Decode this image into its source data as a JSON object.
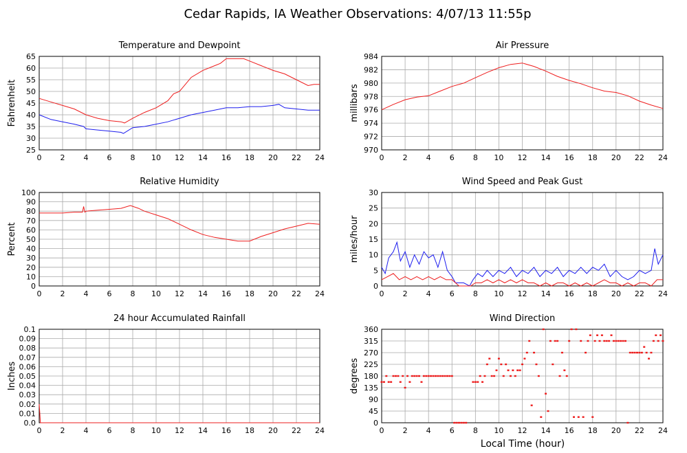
{
  "page": {
    "title": "Cedar Rapids, IA Weather Observations: 4/07/13 11:55p",
    "xlabel": "Local Time (hour)"
  },
  "colors": {
    "red": "#ee1c1c",
    "blue": "#1c1cee",
    "grid": "#a9a9a9"
  },
  "chart_data": [
    {
      "id": "temp",
      "type": "line",
      "title": "Temperature and Dewpoint",
      "ylabel": "Fahrenheit",
      "xlim": [
        0,
        24
      ],
      "ylim": [
        25,
        65
      ],
      "xticks": [
        0,
        2,
        4,
        6,
        8,
        10,
        12,
        14,
        16,
        18,
        20,
        22,
        24
      ],
      "yticks": [
        25,
        30,
        35,
        40,
        45,
        50,
        55,
        60,
        65
      ],
      "grid": true,
      "series": [
        {
          "color": "red",
          "x": [
            0,
            1,
            2,
            3,
            4,
            5,
            6,
            7,
            7.3,
            8,
            9,
            10,
            11,
            11.5,
            12,
            12.5,
            13,
            14,
            15,
            15.5,
            16,
            17,
            17.5,
            18,
            19,
            20,
            21,
            22,
            23,
            23.5,
            24
          ],
          "y": [
            47,
            45.5,
            44,
            42.5,
            40,
            38.5,
            37.5,
            37,
            36.5,
            38.5,
            41,
            43,
            46,
            49,
            50,
            53,
            56,
            59,
            61,
            62,
            64,
            64,
            64,
            63,
            61,
            59,
            57.5,
            55,
            52.5,
            53,
            53
          ]
        },
        {
          "color": "blue",
          "x": [
            0,
            1,
            2,
            3,
            3.8,
            4,
            5,
            6,
            7,
            7.2,
            8,
            9,
            10,
            11,
            12,
            13,
            14,
            15,
            16,
            17,
            18,
            19,
            20,
            20.5,
            21,
            22,
            23,
            24
          ],
          "y": [
            40,
            38,
            37,
            36,
            35,
            34,
            33.5,
            33,
            32.5,
            32,
            34.5,
            35,
            36,
            37,
            38.5,
            40,
            41,
            42,
            43,
            43,
            43.5,
            43.5,
            44,
            44.5,
            43,
            42.5,
            42,
            42
          ]
        }
      ]
    },
    {
      "id": "pressure",
      "type": "line",
      "title": "Air Pressure",
      "ylabel": "millibars",
      "xlim": [
        0,
        24
      ],
      "ylim": [
        970,
        984
      ],
      "xticks": [
        0,
        2,
        4,
        6,
        8,
        10,
        12,
        14,
        16,
        18,
        20,
        22,
        24
      ],
      "yticks": [
        970,
        972,
        974,
        976,
        978,
        980,
        982,
        984
      ],
      "grid": true,
      "series": [
        {
          "color": "red",
          "x": [
            0,
            1,
            2,
            3,
            4,
            5,
            6,
            7,
            8,
            9,
            10,
            11,
            12,
            13,
            14,
            15,
            16,
            17,
            18,
            19,
            20,
            21,
            22,
            23,
            24
          ],
          "y": [
            976,
            976.8,
            977.5,
            977.9,
            978.1,
            978.8,
            979.5,
            980,
            980.8,
            981.6,
            982.3,
            982.8,
            983,
            982.5,
            981.8,
            981,
            980.4,
            979.9,
            979.3,
            978.8,
            978.6,
            978.1,
            977.3,
            976.7,
            976.2
          ]
        }
      ]
    },
    {
      "id": "humidity",
      "type": "line",
      "title": "Relative Humidity",
      "ylabel": "Percent",
      "xlim": [
        0,
        24
      ],
      "ylim": [
        0,
        100
      ],
      "xticks": [
        0,
        2,
        4,
        6,
        8,
        10,
        12,
        14,
        16,
        18,
        20,
        22,
        24
      ],
      "yticks": [
        0,
        10,
        20,
        30,
        40,
        50,
        60,
        70,
        80,
        90,
        100
      ],
      "grid": true,
      "series": [
        {
          "color": "red",
          "x": [
            0,
            1,
            2,
            3,
            3.7,
            3.8,
            3.9,
            4,
            5,
            6,
            7,
            7.8,
            8.5,
            9,
            10,
            11,
            12,
            13,
            14,
            15,
            16,
            17,
            18,
            19,
            20,
            21,
            22,
            23,
            24
          ],
          "y": [
            78,
            78,
            78,
            79,
            79,
            85,
            79,
            80,
            81,
            82,
            83,
            86,
            83,
            80,
            76,
            72,
            66,
            60,
            55,
            52,
            50,
            48,
            48,
            53,
            57,
            61,
            64,
            67,
            66
          ]
        }
      ]
    },
    {
      "id": "wind",
      "type": "line",
      "title": "Wind Speed and Peak Gust",
      "ylabel": "miles/hour",
      "xlim": [
        0,
        24
      ],
      "ylim": [
        0,
        30
      ],
      "xticks": [
        0,
        2,
        4,
        6,
        8,
        10,
        12,
        14,
        16,
        18,
        20,
        22,
        24
      ],
      "yticks": [
        0,
        5,
        10,
        15,
        20,
        25,
        30
      ],
      "grid": true,
      "series": [
        {
          "color": "blue",
          "x": [
            0,
            0.3,
            0.6,
            1,
            1.3,
            1.6,
            2,
            2.4,
            2.8,
            3.2,
            3.6,
            4,
            4.4,
            4.8,
            5.2,
            5.6,
            6,
            6.3,
            6.6,
            7,
            7.5,
            7.8,
            8.2,
            8.6,
            9,
            9.5,
            10,
            10.5,
            11,
            11.5,
            12,
            12.5,
            13,
            13.5,
            14,
            14.5,
            15,
            15.5,
            16,
            16.5,
            17,
            17.5,
            18,
            18.5,
            19,
            19.5,
            20,
            20.5,
            21,
            21.5,
            22,
            22.5,
            23,
            23.3,
            23.6,
            24
          ],
          "y": [
            6,
            4,
            9,
            11,
            14,
            8,
            11,
            6,
            10,
            7,
            11,
            9,
            10,
            6,
            11,
            5,
            3,
            1,
            1,
            1,
            0,
            2,
            4,
            3,
            5,
            3,
            5,
            4,
            6,
            3,
            5,
            4,
            6,
            3,
            5,
            4,
            6,
            3,
            5,
            4,
            6,
            4,
            6,
            5,
            7,
            3,
            5,
            3,
            2,
            3,
            5,
            4,
            5,
            12,
            7,
            10
          ]
        },
        {
          "color": "red",
          "x": [
            0,
            0.5,
            1,
            1.5,
            2,
            2.5,
            3,
            3.5,
            4,
            4.5,
            5,
            5.5,
            6,
            6.3,
            6.6,
            7,
            7.6,
            8,
            8.5,
            9,
            9.5,
            10,
            10.5,
            11,
            11.5,
            12,
            12.5,
            13,
            13.5,
            14,
            14.5,
            15,
            15.5,
            16,
            16.5,
            17,
            17.5,
            18,
            18.5,
            19,
            19.5,
            20,
            20.5,
            21,
            21.5,
            22,
            22.5,
            23,
            23.5,
            24
          ],
          "y": [
            2,
            3,
            4,
            2,
            3,
            2,
            3,
            2,
            3,
            2,
            3,
            2,
            2,
            1,
            0,
            0,
            0,
            1,
            1,
            2,
            1,
            2,
            1,
            2,
            1,
            2,
            1,
            1,
            0,
            1,
            0,
            1,
            1,
            0,
            1,
            0,
            1,
            0,
            1,
            2,
            1,
            1,
            0,
            1,
            0,
            1,
            1,
            0,
            2,
            2
          ]
        }
      ]
    },
    {
      "id": "rain",
      "type": "line",
      "title": "24 hour Accumulated Rainfall",
      "ylabel": "Inches",
      "xlim": [
        0,
        24
      ],
      "ylim": [
        0,
        0.1
      ],
      "xticks": [
        0,
        2,
        4,
        6,
        8,
        10,
        12,
        14,
        16,
        18,
        20,
        22,
        24
      ],
      "yticks": [
        0.0,
        0.01,
        0.02,
        0.03,
        0.04,
        0.05,
        0.06,
        0.07,
        0.08,
        0.09,
        0.1
      ],
      "ytick_labels": [
        "0.0",
        "0.01",
        "0.02",
        "0.03",
        "0.04",
        "0.05",
        "0.06",
        "0.07",
        "0.08",
        "0.09",
        "0.1"
      ],
      "grid": true,
      "series": [
        {
          "color": "red",
          "x": [
            0,
            0.05,
            0.1,
            24
          ],
          "y": [
            0.02,
            0.01,
            0,
            0
          ]
        }
      ]
    },
    {
      "id": "winddir",
      "type": "scatter",
      "title": "Wind Direction",
      "ylabel": "degrees",
      "xlabel": "Local Time (hour)",
      "xlim": [
        0,
        24
      ],
      "ylim": [
        0,
        360
      ],
      "xticks": [
        0,
        2,
        4,
        6,
        8,
        10,
        12,
        14,
        16,
        18,
        20,
        22,
        24
      ],
      "yticks": [
        0,
        45,
        90,
        135,
        180,
        225,
        270,
        315,
        360
      ],
      "grid": true,
      "series": [
        {
          "color": "red",
          "x": [
            0,
            0.2,
            0.4,
            0.6,
            0.8,
            1.0,
            1.2,
            1.4,
            1.6,
            1.8,
            2.0,
            2.2,
            2.4,
            2.6,
            2.8,
            3.0,
            3.2,
            3.4,
            3.6,
            3.8,
            4.0,
            4.2,
            4.4,
            4.6,
            4.8,
            5.0,
            5.2,
            5.4,
            5.6,
            5.8,
            6.0,
            6.2,
            6.4,
            6.6,
            6.8,
            7.0,
            7.2,
            7.8,
            8.0,
            8.2,
            8.4,
            8.6,
            8.8,
            9.0,
            9.2,
            9.4,
            9.6,
            9.8,
            10.0,
            10.2,
            10.4,
            10.6,
            10.8,
            11.0,
            11.2,
            11.4,
            11.6,
            11.8,
            12.0,
            12.2,
            12.4,
            12.6,
            12.8,
            13.0,
            13.2,
            13.4,
            13.6,
            13.8,
            14.0,
            14.2,
            14.4,
            14.6,
            14.8,
            15.0,
            15.2,
            15.4,
            15.6,
            15.8,
            16.0,
            16.2,
            16.4,
            16.6,
            16.8,
            17.0,
            17.2,
            17.4,
            17.6,
            17.8,
            18.0,
            18.2,
            18.4,
            18.6,
            18.8,
            19.0,
            19.2,
            19.4,
            19.6,
            19.8,
            20.0,
            20.2,
            20.4,
            20.6,
            20.8,
            21.0,
            21.2,
            21.4,
            21.6,
            21.8,
            22.0,
            22.2,
            22.4,
            22.6,
            22.8,
            23.0,
            23.2,
            23.4,
            23.6,
            23.8,
            24.0
          ],
          "y": [
            157,
            157,
            180,
            157,
            157,
            180,
            180,
            180,
            157,
            180,
            135,
            180,
            157,
            180,
            180,
            180,
            180,
            157,
            180,
            180,
            180,
            180,
            180,
            180,
            180,
            180,
            180,
            180,
            180,
            180,
            180,
            0,
            0,
            0,
            0,
            0,
            0,
            157,
            157,
            157,
            180,
            157,
            180,
            225,
            247,
            180,
            180,
            202,
            247,
            225,
            180,
            225,
            202,
            180,
            202,
            180,
            202,
            202,
            225,
            247,
            270,
            315,
            67,
            270,
            225,
            180,
            22,
            360,
            112,
            45,
            315,
            225,
            315,
            315,
            180,
            270,
            202,
            180,
            315,
            360,
            22,
            360,
            22,
            315,
            22,
            270,
            315,
            337,
            22,
            315,
            337,
            315,
            337,
            315,
            315,
            315,
            337,
            315,
            315,
            315,
            315,
            315,
            315,
            0,
            270,
            270,
            270,
            270,
            270,
            270,
            292,
            270,
            247,
            270,
            315,
            337,
            315,
            337,
            315
          ]
        }
      ]
    }
  ]
}
